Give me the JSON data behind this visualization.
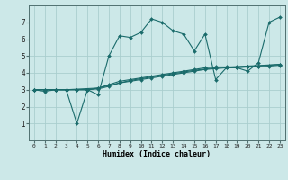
{
  "xlabel": "Humidex (Indice chaleur)",
  "background_color": "#cce8e8",
  "grid_color": "#aacece",
  "line_color": "#1a6b6b",
  "xlim": [
    -0.5,
    23.5
  ],
  "ylim": [
    0,
    8
  ],
  "xticks": [
    0,
    1,
    2,
    3,
    4,
    5,
    6,
    7,
    8,
    9,
    10,
    11,
    12,
    13,
    14,
    15,
    16,
    17,
    18,
    19,
    20,
    21,
    22,
    23
  ],
  "yticks": [
    1,
    2,
    3,
    4,
    5,
    6,
    7
  ],
  "lines": [
    {
      "x": [
        0,
        1,
        2,
        3,
        4,
        5,
        6,
        7,
        8,
        9,
        10,
        11,
        12,
        13,
        14,
        15,
        16,
        17,
        18,
        19,
        20,
        21,
        22,
        23
      ],
      "y": [
        3.0,
        2.9,
        3.0,
        3.0,
        1.0,
        3.0,
        2.7,
        5.0,
        6.2,
        6.1,
        6.4,
        7.2,
        7.0,
        6.5,
        6.3,
        5.3,
        6.3,
        3.6,
        4.3,
        4.3,
        4.1,
        4.6,
        7.0,
        7.3
      ]
    },
    {
      "x": [
        0,
        1,
        2,
        3,
        4,
        5,
        6,
        7,
        8,
        9,
        10,
        11,
        12,
        13,
        14,
        15,
        16,
        17,
        18,
        19,
        20,
        21,
        22,
        23
      ],
      "y": [
        3.0,
        3.0,
        3.0,
        3.0,
        3.0,
        3.0,
        3.1,
        3.3,
        3.5,
        3.6,
        3.7,
        3.8,
        3.9,
        4.0,
        4.1,
        4.2,
        4.3,
        4.35,
        4.35,
        4.35,
        4.4,
        4.4,
        4.45,
        4.5
      ]
    },
    {
      "x": [
        0,
        1,
        2,
        3,
        4,
        5,
        6,
        7,
        8,
        9,
        10,
        11,
        12,
        13,
        14,
        15,
        16,
        17,
        18,
        19,
        20,
        21,
        22,
        23
      ],
      "y": [
        3.0,
        3.0,
        3.0,
        3.0,
        3.0,
        3.0,
        3.05,
        3.2,
        3.4,
        3.5,
        3.6,
        3.7,
        3.8,
        3.9,
        4.0,
        4.1,
        4.2,
        4.25,
        4.3,
        4.3,
        4.35,
        4.35,
        4.4,
        4.45
      ]
    },
    {
      "x": [
        0,
        3,
        6,
        9,
        12,
        15,
        17,
        20,
        23
      ],
      "y": [
        3.0,
        3.0,
        3.1,
        3.55,
        3.85,
        4.15,
        4.3,
        4.4,
        4.5
      ]
    }
  ]
}
